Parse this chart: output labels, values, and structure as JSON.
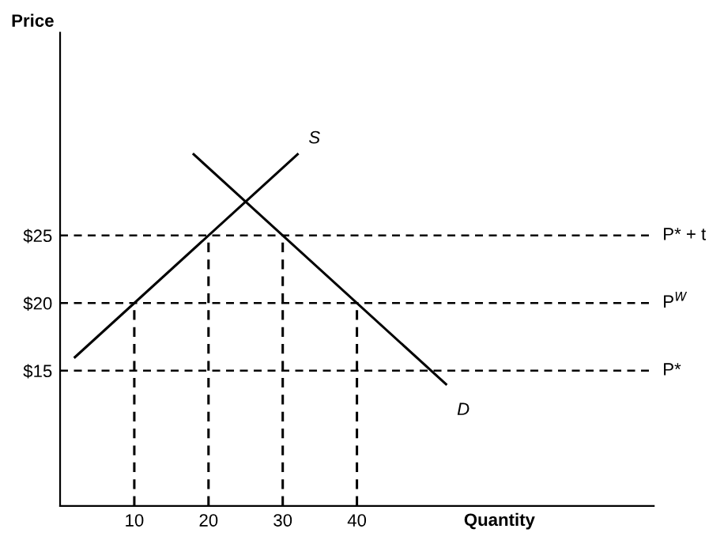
{
  "chart_data": {
    "type": "line",
    "xlabel": "Quantity",
    "ylabel": "Price",
    "xlim": [
      0,
      80
    ],
    "ylim": [
      5,
      40
    ],
    "xticks": [
      10,
      20,
      30,
      40
    ],
    "yticks": [
      {
        "value": 15,
        "label": "$15"
      },
      {
        "value": 20,
        "label": "$20"
      },
      {
        "value": 25,
        "label": "$25"
      }
    ],
    "series": [
      {
        "color": "#000000",
        "x": [
          2,
          32
        ],
        "values": [
          16,
          31
        ]
      },
      {
        "color": "#000000",
        "x": [
          18,
          52
        ],
        "values": [
          31,
          14
        ]
      },
      {
        "color": "#000000",
        "x": [
          10,
          10
        ],
        "values": [
          5,
          20
        ],
        "line_style": "dashed"
      },
      {
        "color": "#000000",
        "x": [
          20,
          20
        ],
        "values": [
          5,
          25
        ],
        "line_style": "dashed"
      },
      {
        "color": "#000000",
        "x": [
          30,
          30
        ],
        "values": [
          5,
          25
        ],
        "line_style": "dashed"
      },
      {
        "color": "#000000",
        "x": [
          40,
          40
        ],
        "values": [
          5,
          20
        ],
        "line_style": "dashed"
      }
    ],
    "annotations": [
      {
        "text": "S",
        "x": 32,
        "y": 31
      },
      {
        "text": "D",
        "x": 52,
        "y": 14
      }
    ],
    "ref_lines": [
      {
        "axis": "y",
        "value": 25,
        "label": "P* + t",
        "color": "#000000",
        "line_style": "dashed"
      },
      {
        "axis": "y",
        "value": 20,
        "label": "P$^{W}$",
        "color": "#000000",
        "line_style": "dashed"
      },
      {
        "axis": "y",
        "value": 15,
        "label": "P*",
        "color": "#000000",
        "line_style": "dashed"
      }
    ],
    "grid": false
  }
}
